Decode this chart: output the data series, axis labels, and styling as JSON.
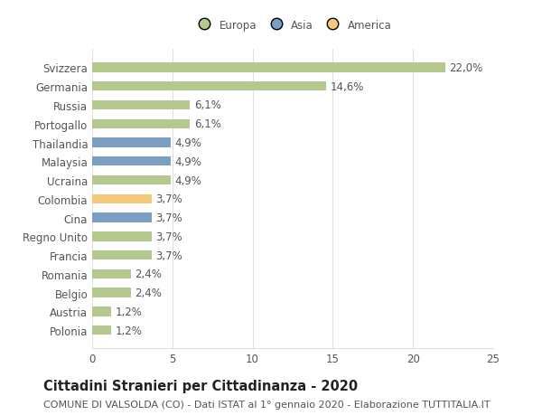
{
  "categories": [
    "Svizzera",
    "Germania",
    "Russia",
    "Portogallo",
    "Thailandia",
    "Malaysia",
    "Ucraina",
    "Colombia",
    "Cina",
    "Regno Unito",
    "Francia",
    "Romania",
    "Belgio",
    "Austria",
    "Polonia"
  ],
  "values": [
    22.0,
    14.6,
    6.1,
    6.1,
    4.9,
    4.9,
    4.9,
    3.7,
    3.7,
    3.7,
    3.7,
    2.4,
    2.4,
    1.2,
    1.2
  ],
  "labels": [
    "22,0%",
    "14,6%",
    "6,1%",
    "6,1%",
    "4,9%",
    "4,9%",
    "4,9%",
    "3,7%",
    "3,7%",
    "3,7%",
    "3,7%",
    "2,4%",
    "2,4%",
    "1,2%",
    "1,2%"
  ],
  "colors": [
    "#b5c98e",
    "#b5c98e",
    "#b5c98e",
    "#b5c98e",
    "#7b9ec4",
    "#7b9ec4",
    "#b5c98e",
    "#f5c97a",
    "#7b9ec4",
    "#b5c98e",
    "#b5c98e",
    "#b5c98e",
    "#b5c98e",
    "#b5c98e",
    "#b5c98e"
  ],
  "legend_labels": [
    "Europa",
    "Asia",
    "America"
  ],
  "legend_colors": [
    "#b5c98e",
    "#7b9ec4",
    "#f5c97a"
  ],
  "title": "Cittadini Stranieri per Cittadinanza - 2020",
  "subtitle": "COMUNE DI VALSOLDA (CO) - Dati ISTAT al 1° gennaio 2020 - Elaborazione TUTTITALIA.IT",
  "xlim": [
    0,
    25
  ],
  "xticks": [
    0,
    5,
    10,
    15,
    20,
    25
  ],
  "background_color": "#ffffff",
  "grid_color": "#e0e0e0",
  "bar_height": 0.5,
  "label_fontsize": 8.5,
  "tick_fontsize": 8.5,
  "title_fontsize": 10.5,
  "subtitle_fontsize": 8.0
}
